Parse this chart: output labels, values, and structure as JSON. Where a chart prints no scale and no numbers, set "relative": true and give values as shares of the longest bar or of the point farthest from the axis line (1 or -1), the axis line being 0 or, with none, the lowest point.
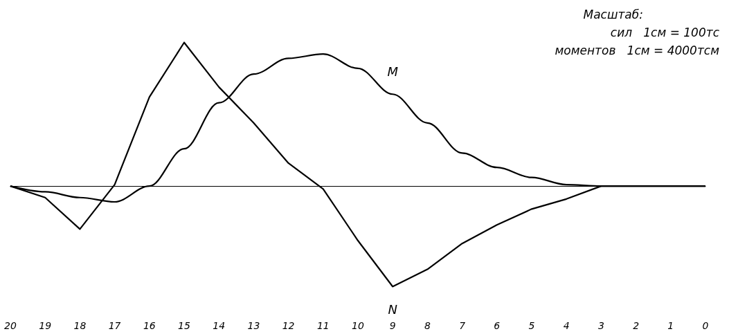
{
  "chart_data": {
    "type": "line",
    "relative": true,
    "marker": "none",
    "categories": [
      "20",
      "19",
      "18",
      "17",
      "16",
      "15",
      "14",
      "13",
      "12",
      "11",
      "10",
      "9",
      "8",
      "7",
      "6",
      "5",
      "4",
      "3",
      "2",
      "1",
      "0"
    ],
    "series": [
      {
        "name": "M",
        "color": "#000000",
        "values": [
          0,
          -0.04,
          -0.08,
          -0.11,
          0,
          0.26,
          0.58,
          0.78,
          0.89,
          0.92,
          0.82,
          0.64,
          0.44,
          0.23,
          0.13,
          0.06,
          0.01,
          0,
          0,
          0,
          0
        ]
      },
      {
        "name": "N",
        "color": "#000000",
        "values": [
          0,
          -0.08,
          -0.3,
          0.01,
          0.62,
          1,
          0.69,
          0.44,
          0.16,
          -0.02,
          -0.38,
          -0.7,
          -0.58,
          -0.4,
          -0.27,
          -0.16,
          -0.09,
          0,
          0,
          0,
          0
        ]
      }
    ],
    "annotations": [
      "Масштаб:",
      "сил   1см = 100тс",
      "моментов   1см = 4000тсм"
    ]
  }
}
